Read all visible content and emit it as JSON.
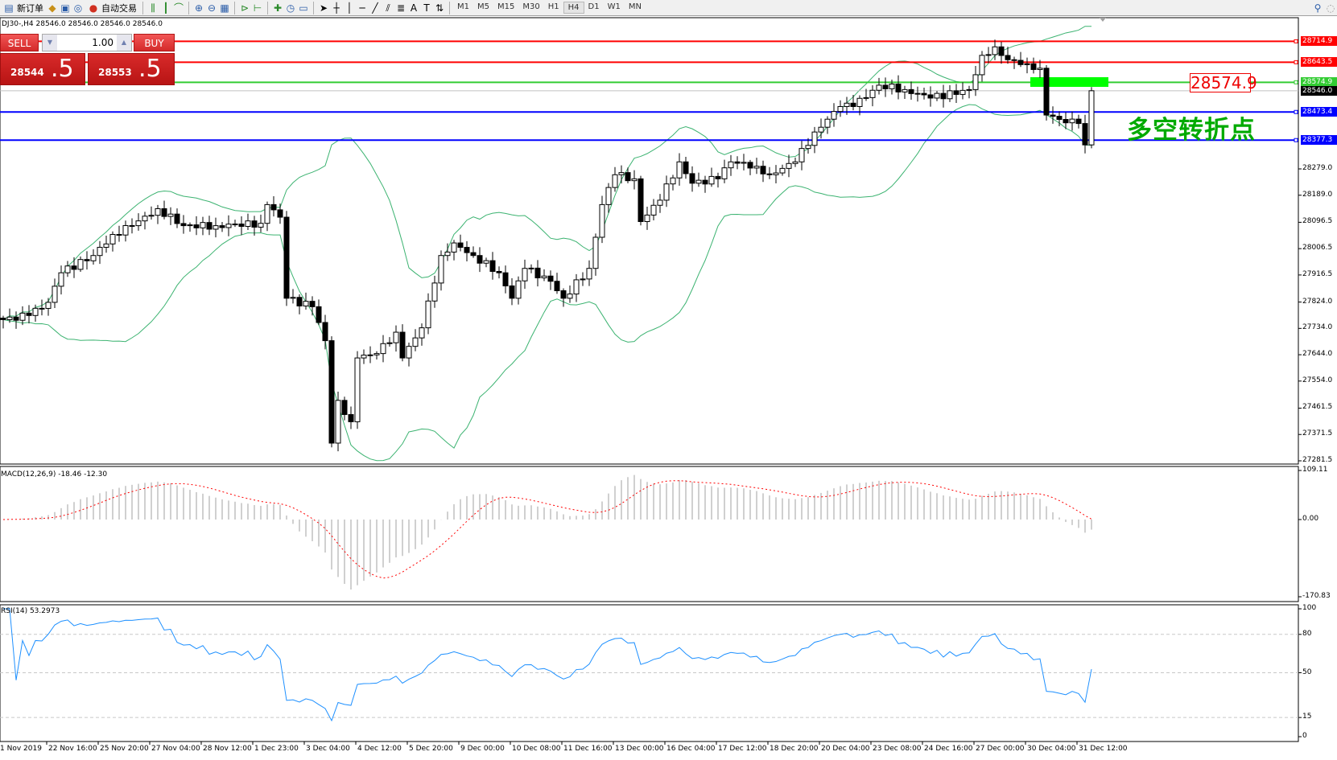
{
  "toolbar": {
    "new_order": "新订单",
    "auto_trading": "自动交易",
    "timeframes": [
      "M1",
      "M5",
      "M15",
      "M30",
      "H1",
      "H4",
      "D1",
      "W1",
      "MN"
    ],
    "active_timeframe": "H4"
  },
  "chart_info": "DJ30-,H4  28546.0 28546.0 28546.0 28546.0",
  "trade_panel": {
    "sell": "SELL",
    "buy": "BUY",
    "lot": "1.00",
    "bid_main": "28544",
    "bid_frac": ".5",
    "ask_main": "28553",
    "ask_frac": ".5"
  },
  "levels": [
    {
      "price": "28714.9",
      "color": "#ff0000"
    },
    {
      "price": "28643.5",
      "color": "#ff0000"
    },
    {
      "price": "28574.9",
      "color": "#33cc33"
    },
    {
      "price": "28546.0",
      "color": "#000000"
    },
    {
      "price": "28473.4",
      "color": "#0000ff"
    },
    {
      "price": "28377.3",
      "color": "#0000ff"
    }
  ],
  "price_axis": [
    "28279.0",
    "28189.0",
    "28096.5",
    "28006.5",
    "27916.5",
    "27824.0",
    "27734.0",
    "27644.0",
    "27554.0",
    "27461.5",
    "27371.5",
    "27281.5"
  ],
  "annotation": {
    "price_box": "28574.9",
    "text": "多空转折点",
    "zone_color": "#00ff00"
  },
  "macd": {
    "label": "MACD(12,26,9) -18.46 -12.30",
    "axis": [
      "109.11",
      "0.00",
      "-170.83"
    ],
    "range": [
      -170.83,
      109.11
    ]
  },
  "rsi": {
    "label": "RSI(14) 53.2973",
    "axis": [
      "100",
      "80",
      "50",
      "15",
      "0"
    ],
    "levels": [
      80,
      50,
      15
    ]
  },
  "time_axis": [
    "1 Nov 2019",
    "22 Nov 16:00",
    "25 Nov 20:00",
    "27 Nov 04:00",
    "28 Nov 12:00",
    "1 Dec 23:00",
    "3 Dec 04:00",
    "4 Dec 12:00",
    "5 Dec 20:00",
    "9 Dec 00:00",
    "10 Dec 08:00",
    "11 Dec 16:00",
    "13 Dec 00:00",
    "16 Dec 04:00",
    "17 Dec 12:00",
    "18 Dec 20:00",
    "20 Dec 04:00",
    "23 Dec 08:00",
    "24 Dec 16:00",
    "27 Dec 00:00",
    "30 Dec 04:00",
    "31 Dec 12:00"
  ],
  "chart_data": {
    "type": "candlestick",
    "symbol": "DJ30-",
    "timeframe": "H4",
    "ylim": [
      27281.5,
      28735
    ],
    "close_waypoints": [
      [
        0,
        27764
      ],
      [
        4,
        27778
      ],
      [
        7,
        27823
      ],
      [
        9,
        27924
      ],
      [
        14,
        27983
      ],
      [
        17,
        28055
      ],
      [
        20,
        28085
      ],
      [
        24,
        28143
      ],
      [
        28,
        28085
      ],
      [
        33,
        28085
      ],
      [
        40,
        28093
      ],
      [
        41,
        28157
      ],
      [
        43,
        28114
      ],
      [
        44,
        27837
      ],
      [
        48,
        27808
      ],
      [
        50,
        27692
      ],
      [
        51,
        27342
      ],
      [
        52,
        27488
      ],
      [
        54,
        27415
      ],
      [
        55,
        27633
      ],
      [
        58,
        27648
      ],
      [
        61,
        27721
      ],
      [
        62,
        27633
      ],
      [
        65,
        27736
      ],
      [
        68,
        27983
      ],
      [
        70,
        28026
      ],
      [
        73,
        27983
      ],
      [
        77,
        27924
      ],
      [
        79,
        27837
      ],
      [
        81,
        27939
      ],
      [
        85,
        27895
      ],
      [
        87,
        27837
      ],
      [
        91,
        27939
      ],
      [
        93,
        28157
      ],
      [
        95,
        28259
      ],
      [
        98,
        28245
      ],
      [
        99,
        28099
      ],
      [
        102,
        28172
      ],
      [
        105,
        28303
      ],
      [
        107,
        28230
      ],
      [
        111,
        28245
      ],
      [
        113,
        28303
      ],
      [
        117,
        28288
      ],
      [
        119,
        28259
      ],
      [
        123,
        28303
      ],
      [
        126,
        28405
      ],
      [
        130,
        28492
      ],
      [
        132,
        28492
      ],
      [
        136,
        28565
      ],
      [
        140,
        28550
      ],
      [
        144,
        28521
      ],
      [
        150,
        28550
      ],
      [
        152,
        28667
      ],
      [
        154,
        28696
      ],
      [
        156,
        28652
      ],
      [
        159,
        28638
      ],
      [
        161,
        28623
      ],
      [
        162,
        28463
      ],
      [
        164,
        28448
      ],
      [
        167,
        28434
      ],
      [
        168,
        28361
      ],
      [
        169,
        28546
      ]
    ]
  }
}
